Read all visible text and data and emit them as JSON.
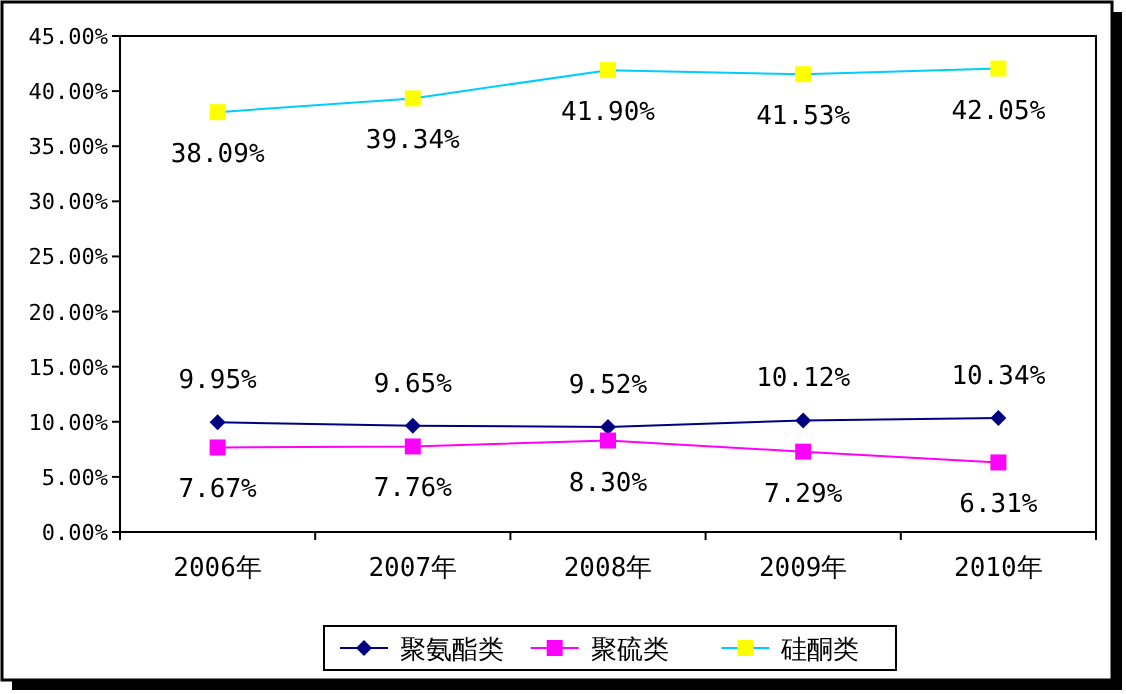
{
  "chart_data": {
    "type": "line",
    "categories": [
      "2006年",
      "2007年",
      "2008年",
      "2009年",
      "2010年"
    ],
    "series": [
      {
        "name": "聚氨酯类",
        "color": "#000080",
        "marker": "diamond",
        "values": [
          9.95,
          9.65,
          9.52,
          10.12,
          10.34
        ],
        "value_labels": [
          "9.95%",
          "9.65%",
          "9.52%",
          "10.12%",
          "10.34%"
        ]
      },
      {
        "name": "聚硫类",
        "color": "#ff00ff",
        "marker": "square",
        "values": [
          7.67,
          7.76,
          8.3,
          7.29,
          6.31
        ],
        "value_labels": [
          "7.67%",
          "7.76%",
          "8.30%",
          "7.29%",
          "6.31%"
        ]
      },
      {
        "name": "硅酮类",
        "color": "#ffff00",
        "marker": "square",
        "values": [
          38.09,
          39.34,
          41.9,
          41.53,
          42.05
        ],
        "value_labels": [
          "38.09%",
          "39.34%",
          "41.90%",
          "41.53%",
          "42.05%"
        ]
      }
    ],
    "ylim": [
      0,
      45
    ],
    "yticks": [
      {
        "value": 0,
        "label": "0.00%"
      },
      {
        "value": 5,
        "label": "5.00%"
      },
      {
        "value": 10,
        "label": "10.00%"
      },
      {
        "value": 15,
        "label": "15.00%"
      },
      {
        "value": 20,
        "label": "20.00%"
      },
      {
        "value": 25,
        "label": "25.00%"
      },
      {
        "value": 30,
        "label": "30.00%"
      },
      {
        "value": 35,
        "label": "35.00%"
      },
      {
        "value": 40,
        "label": "40.00%"
      },
      {
        "value": 45,
        "label": "45.00%"
      }
    ],
    "grid": false,
    "legend": "bottom"
  }
}
